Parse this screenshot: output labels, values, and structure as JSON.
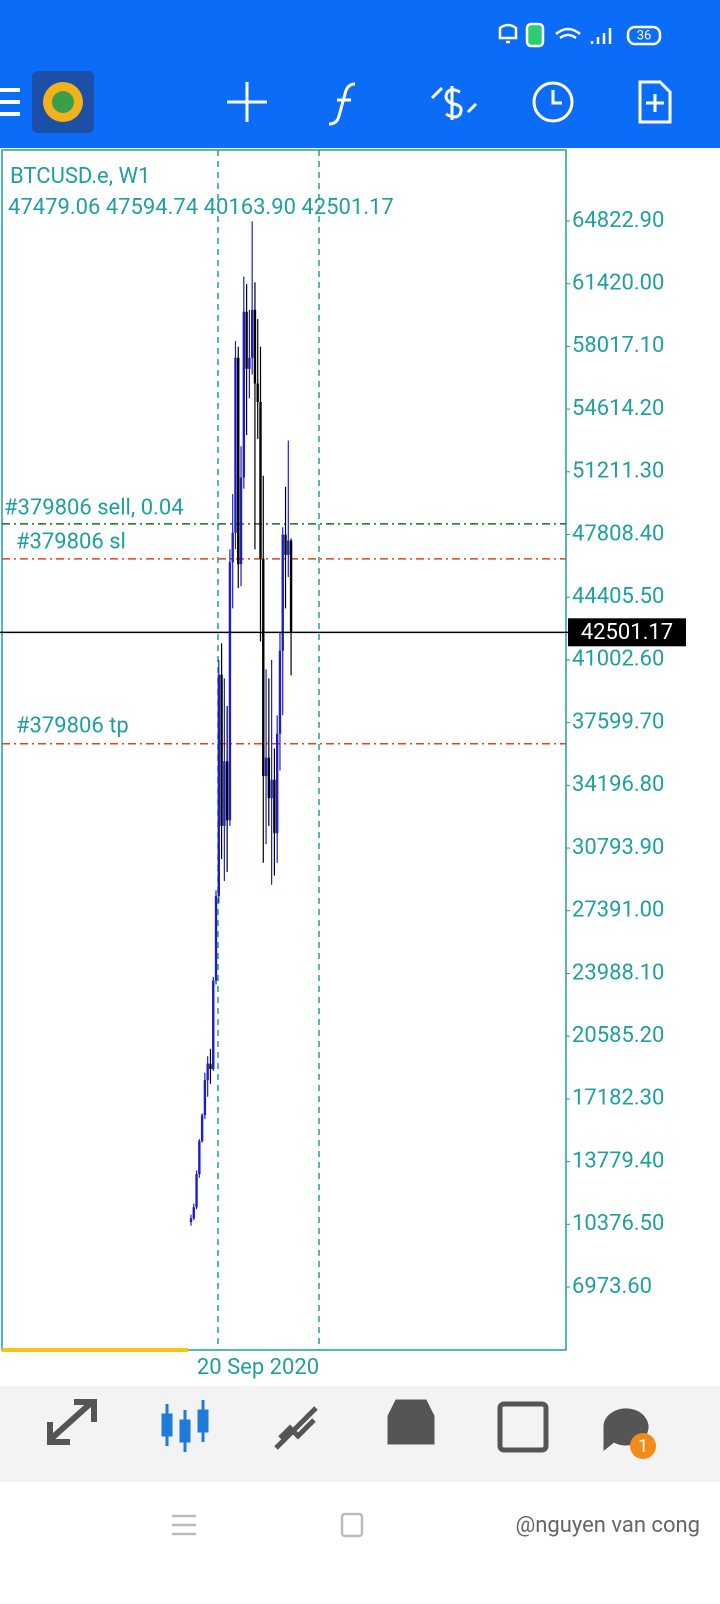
{
  "status_bar": {
    "battery": "36"
  },
  "chart_data": {
    "type": "candlestick",
    "symbol": "BTCUSD.e, W1",
    "info": "47479.06 47594.74 40163.90 42501.17",
    "x_label": "20 Sep 2020",
    "ylim": [
      3556,
      68674
    ],
    "yticks": [
      {
        "value": 64822.9,
        "label": "64822.90"
      },
      {
        "value": 61420,
        "label": "61420.00"
      },
      {
        "value": 58017.1,
        "label": "58017.10"
      },
      {
        "value": 54614.2,
        "label": "54614.20"
      },
      {
        "value": 51211.3,
        "label": "51211.30"
      },
      {
        "value": 47808.4,
        "label": "47808.40"
      },
      {
        "value": 44405.5,
        "label": "44405.50"
      },
      {
        "value": 41002.6,
        "label": "41002.60"
      },
      {
        "value": 37599.7,
        "label": "37599.70"
      },
      {
        "value": 34196.8,
        "label": "34196.80"
      },
      {
        "value": 30793.9,
        "label": "30793.90"
      },
      {
        "value": 27391,
        "label": "27391.00"
      },
      {
        "value": 23988.1,
        "label": "23988.10"
      },
      {
        "value": 20585.2,
        "label": "20585.20"
      },
      {
        "value": 17182.3,
        "label": "17182.30"
      },
      {
        "value": 13779.4,
        "label": "13779.40"
      },
      {
        "value": 10376.5,
        "label": "10376.50"
      },
      {
        "value": 6973.6,
        "label": "6973.60"
      }
    ],
    "open": [
      10500,
      10700,
      11300,
      13100,
      14900,
      16300,
      18200,
      19100,
      18800,
      23600,
      28200,
      40200,
      32000,
      35500,
      32300,
      46300,
      47900,
      57400,
      46200,
      50900,
      59900,
      56800,
      57400,
      60000,
      56000,
      55000,
      46500,
      34700,
      35700,
      33500,
      34500,
      31600,
      37000,
      41500,
      47800,
      46700,
      47479.06
    ],
    "high": [
      10900,
      11500,
      13300,
      15000,
      16400,
      18600,
      19500,
      19900,
      23800,
      28500,
      41000,
      41900,
      40000,
      38500,
      47000,
      50000,
      58300,
      58000,
      52600,
      61800,
      61400,
      60000,
      64800,
      61500,
      59500,
      58000,
      51000,
      40500,
      40000,
      41000,
      36200,
      38000,
      42500,
      48200,
      50400,
      52900,
      47594.74
    ],
    "low": [
      10300,
      10600,
      11200,
      12900,
      14800,
      16100,
      17300,
      18000,
      18700,
      23400,
      27800,
      30200,
      29000,
      29500,
      32000,
      43800,
      47000,
      44900,
      45000,
      50300,
      53200,
      55200,
      56500,
      47000,
      53000,
      42000,
      30000,
      31000,
      32000,
      28800,
      29300,
      30000,
      35000,
      38000,
      43800,
      45500,
      40163.9
    ],
    "close": [
      10700,
      11300,
      13100,
      14900,
      16300,
      18200,
      19100,
      18800,
      23600,
      28200,
      40200,
      32000,
      35500,
      32300,
      46300,
      47900,
      57400,
      46200,
      50900,
      59900,
      56800,
      57400,
      60000,
      56000,
      55000,
      46500,
      34700,
      35700,
      33500,
      34500,
      31600,
      37000,
      41500,
      47800,
      46700,
      47479.06,
      42501.17
    ],
    "up_color": "#1e1ec8",
    "down_color": "#000000",
    "current_price": 42501.17,
    "levels": [
      {
        "label": "#379806 sell, 0.04",
        "value": 48387,
        "color": "#1b6e1b"
      },
      {
        "label": "#379806 sl",
        "value": 46488,
        "color": "#e0461a"
      },
      {
        "label": "#379806 tp",
        "value": 36453,
        "color": "#e0461a"
      }
    ]
  },
  "nav_badge": "1",
  "watermark": "@nguyen van cong"
}
